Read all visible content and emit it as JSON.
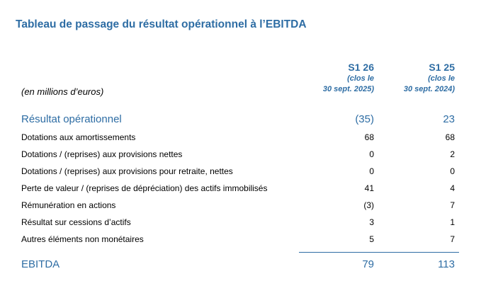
{
  "title": "Tableau de passage du résultat opérationnel à l’EBITDA",
  "unit_label": "(en millions d’euros)",
  "columns": [
    {
      "period": "S1 26",
      "sub1": "(clos le",
      "sub2": "30 sept. 2025)"
    },
    {
      "period": "S1 25",
      "sub1": "(clos le",
      "sub2": "30 sept. 2024)"
    }
  ],
  "rows": [
    {
      "label": "Résultat opérationnel",
      "v1": "(35)",
      "v2": "23"
    },
    {
      "label": "Dotations aux amortissements",
      "v1": "68",
      "v2": "68"
    },
    {
      "label": "Dotations / (reprises) aux provisions nettes",
      "v1": "0",
      "v2": "2"
    },
    {
      "label": "Dotations / (reprises) aux provisions pour retraite, nettes",
      "v1": "0",
      "v2": "0"
    },
    {
      "label": "Perte de valeur / (reprises de dépréciation) des actifs immobilisés",
      "v1": "41",
      "v2": "4"
    },
    {
      "label": "Rémunération en actions",
      "v1": "(3)",
      "v2": "7"
    },
    {
      "label": "Résultat sur cessions d’actifs",
      "v1": "3",
      "v2": "1"
    },
    {
      "label": "Autres éléments non monétaires",
      "v1": "5",
      "v2": "7"
    },
    {
      "label": "EBITDA",
      "v1": "79",
      "v2": "113"
    }
  ],
  "colors": {
    "accent": "#2e6da4",
    "text": "#000000",
    "background": "#ffffff"
  }
}
